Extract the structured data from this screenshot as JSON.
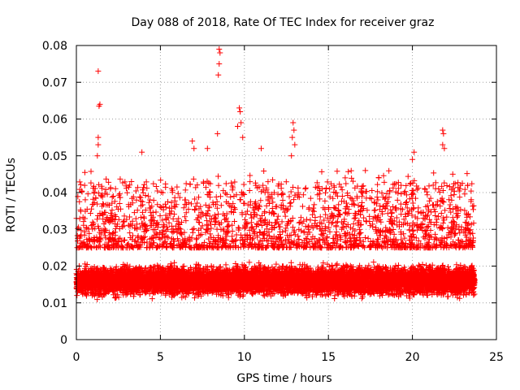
{
  "chart_data": {
    "type": "scatter",
    "title": "Day 088 of 2018, Rate Of TEC Index for receiver graz",
    "xlabel": "GPS time / hours",
    "ylabel": "ROTI / TECUs",
    "xlim": [
      0,
      25
    ],
    "ylim": [
      0,
      0.08
    ],
    "xticks": [
      0,
      5,
      10,
      15,
      20,
      25
    ],
    "xtick_labels": [
      "0",
      "5",
      "10",
      "15",
      "20",
      "25"
    ],
    "yticks": [
      0,
      0.01,
      0.02,
      0.03,
      0.04,
      0.05,
      0.06,
      0.07,
      0.08
    ],
    "ytick_labels": [
      "0",
      "0.01",
      "0.02",
      "0.03",
      "0.04",
      "0.05",
      "0.06",
      "0.07",
      "0.08"
    ],
    "grid": true,
    "marker": "+",
    "marker_color": "#ff0000",
    "data_x_range": [
      0,
      23.7
    ],
    "band": {
      "typical_min": 0.008,
      "typical_max": 0.025,
      "median": 0.016
    },
    "outliers": [
      {
        "x": 1.3,
        "y": 0.073
      },
      {
        "x": 1.4,
        "y": 0.064
      },
      {
        "x": 1.35,
        "y": 0.0635
      },
      {
        "x": 1.3,
        "y": 0.055
      },
      {
        "x": 1.3,
        "y": 0.053
      },
      {
        "x": 1.25,
        "y": 0.05
      },
      {
        "x": 8.5,
        "y": 0.079
      },
      {
        "x": 8.55,
        "y": 0.078
      },
      {
        "x": 8.5,
        "y": 0.075
      },
      {
        "x": 8.45,
        "y": 0.072
      },
      {
        "x": 8.4,
        "y": 0.056
      },
      {
        "x": 9.7,
        "y": 0.063
      },
      {
        "x": 9.75,
        "y": 0.062
      },
      {
        "x": 9.8,
        "y": 0.059
      },
      {
        "x": 9.6,
        "y": 0.058
      },
      {
        "x": 9.9,
        "y": 0.055
      },
      {
        "x": 12.9,
        "y": 0.059
      },
      {
        "x": 12.95,
        "y": 0.057
      },
      {
        "x": 12.85,
        "y": 0.055
      },
      {
        "x": 13.0,
        "y": 0.053
      },
      {
        "x": 12.8,
        "y": 0.05
      },
      {
        "x": 21.8,
        "y": 0.057
      },
      {
        "x": 21.85,
        "y": 0.056
      },
      {
        "x": 21.8,
        "y": 0.053
      },
      {
        "x": 21.9,
        "y": 0.052
      },
      {
        "x": 20.0,
        "y": 0.049
      },
      {
        "x": 20.1,
        "y": 0.051
      },
      {
        "x": 6.9,
        "y": 0.054
      },
      {
        "x": 7.0,
        "y": 0.052
      },
      {
        "x": 3.9,
        "y": 0.051
      },
      {
        "x": 7.8,
        "y": 0.052
      },
      {
        "x": 11.0,
        "y": 0.052
      },
      {
        "x": 16.0,
        "y": 0.044
      },
      {
        "x": 17.2,
        "y": 0.046
      },
      {
        "x": 18.0,
        "y": 0.044
      },
      {
        "x": 22.4,
        "y": 0.045
      }
    ]
  }
}
